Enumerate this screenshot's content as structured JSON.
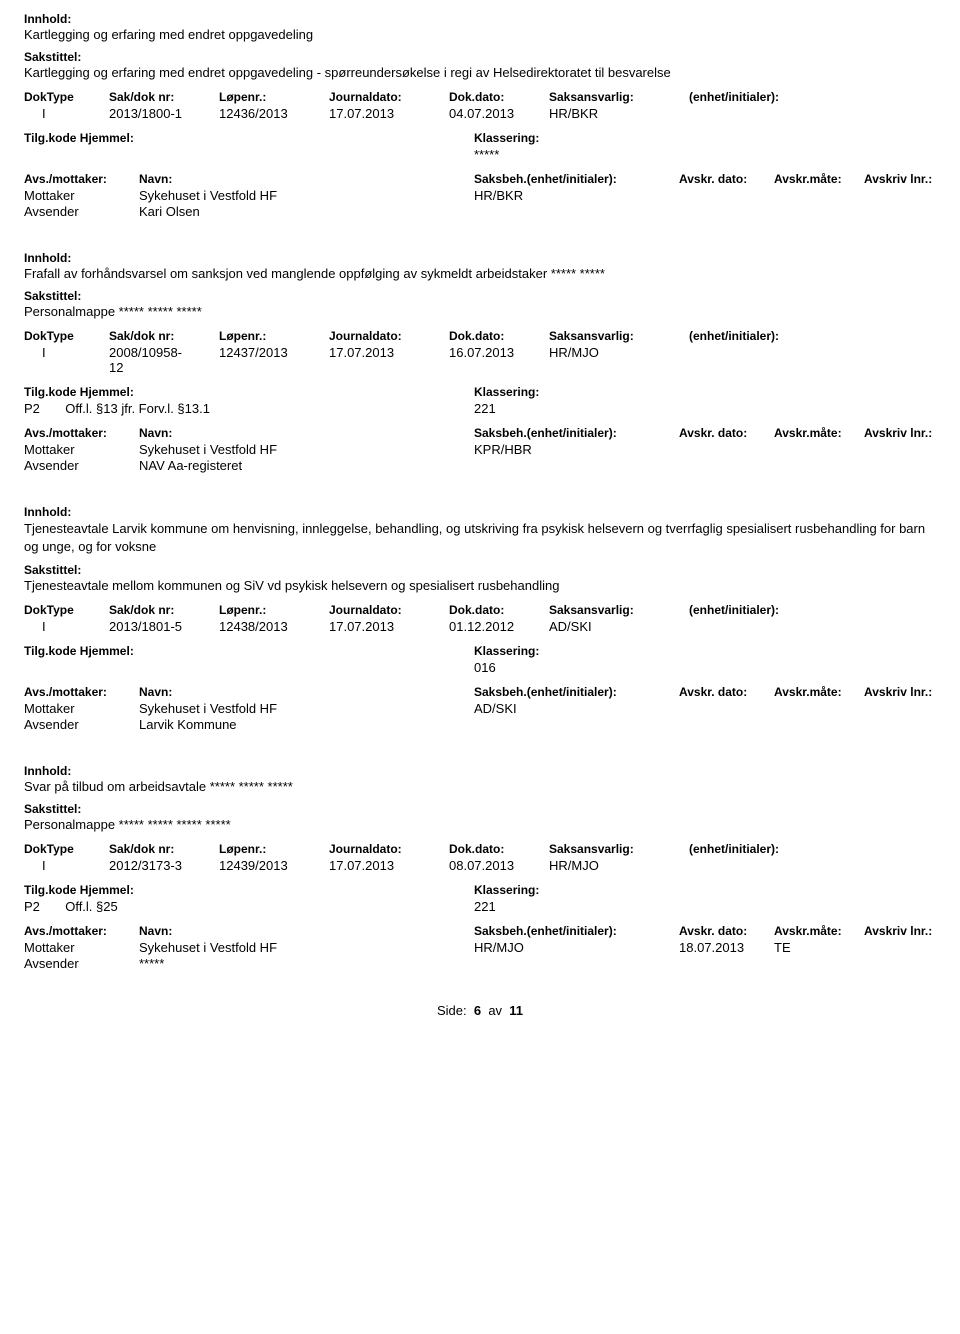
{
  "labels": {
    "innhold": "Innhold:",
    "sakstittel": "Sakstittel:",
    "doktype": "DokType",
    "sakdoknr": "Sak/dok nr:",
    "lopenr": "Løpenr.:",
    "journaldato": "Journaldato:",
    "dokdato": "Dok.dato:",
    "saksansvarlig": "Saksansvarlig:",
    "enhet": "(enhet/initialer):",
    "tilgkode": "Tilg.kode",
    "hjemmel": "Hjemmel:",
    "klassering": "Klassering:",
    "avsmottaker": "Avs./mottaker:",
    "navn": "Navn:",
    "saksbeh": "Saksbeh.",
    "saksbeh_enhet": "(enhet/initialer):",
    "avskrdato": "Avskr. dato:",
    "avskrmate": "Avskr.måte:",
    "avskrivlnr": "Avskriv lnr.:",
    "mottaker": "Mottaker",
    "avsender": "Avsender"
  },
  "records": [
    {
      "innhold": "Kartlegging og erfaring med endret oppgavedeling",
      "sakstittel": "Kartlegging og erfaring med endret oppgavedeling - spørreundersøkelse i regi av Helsedirektoratet til besvarelse",
      "doktype": "I",
      "sakdoknr": "2013/1800-1",
      "sakdoknr2": "",
      "lopenr": "12436/2013",
      "journaldato": "17.07.2013",
      "dokdato": "04.07.2013",
      "saksansvarlig": "HR/BKR",
      "tilgkode": "",
      "hjemmel": "",
      "klassering": "*****",
      "parties": [
        {
          "role": "Mottaker",
          "navn": "Sykehuset i Vestfold HF",
          "saksbeh": "HR/BKR",
          "avskrdato": "",
          "avskrmate": ""
        },
        {
          "role": "Avsender",
          "navn": "Kari Olsen",
          "saksbeh": "",
          "avskrdato": "",
          "avskrmate": ""
        }
      ]
    },
    {
      "innhold": "Frafall av forhåndsvarsel om sanksjon ved manglende oppfølging av sykmeldt arbeidstaker ***** *****",
      "sakstittel": "Personalmappe ***** ***** *****",
      "doktype": "I",
      "sakdoknr": "2008/10958-",
      "sakdoknr2": "12",
      "lopenr": "12437/2013",
      "journaldato": "17.07.2013",
      "dokdato": "16.07.2013",
      "saksansvarlig": "HR/MJO",
      "tilgkode": "P2",
      "hjemmel": "Off.l. §13  jfr. Forv.l. §13.1",
      "klassering": "221",
      "parties": [
        {
          "role": "Mottaker",
          "navn": "Sykehuset i Vestfold HF",
          "saksbeh": "KPR/HBR",
          "avskrdato": "",
          "avskrmate": ""
        },
        {
          "role": "Avsender",
          "navn": "NAV Aa-registeret",
          "saksbeh": "",
          "avskrdato": "",
          "avskrmate": ""
        }
      ]
    },
    {
      "innhold": "Tjenesteavtale Larvik kommune om henvisning, innleggelse, behandling, og utskriving fra psykisk helsevern og tverrfaglig spesialisert rusbehandling for barn og unge, og for voksne",
      "sakstittel": "Tjenesteavtale mellom kommunen og SiV vd psykisk helsevern og spesialisert rusbehandling",
      "doktype": "I",
      "sakdoknr": "2013/1801-5",
      "sakdoknr2": "",
      "lopenr": "12438/2013",
      "journaldato": "17.07.2013",
      "dokdato": "01.12.2012",
      "saksansvarlig": "AD/SKI",
      "tilgkode": "",
      "hjemmel": "",
      "klassering": "016",
      "parties": [
        {
          "role": "Mottaker",
          "navn": "Sykehuset i Vestfold HF",
          "saksbeh": "AD/SKI",
          "avskrdato": "",
          "avskrmate": ""
        },
        {
          "role": "Avsender",
          "navn": "Larvik Kommune",
          "saksbeh": "",
          "avskrdato": "",
          "avskrmate": ""
        }
      ]
    },
    {
      "innhold": "Svar på tilbud om arbeidsavtale ***** ***** *****",
      "sakstittel": "Personalmappe ***** ***** ***** *****",
      "doktype": "I",
      "sakdoknr": "2012/3173-3",
      "sakdoknr2": "",
      "lopenr": "12439/2013",
      "journaldato": "17.07.2013",
      "dokdato": "08.07.2013",
      "saksansvarlig": "HR/MJO",
      "tilgkode": "P2",
      "hjemmel": "Off.l. §25",
      "klassering": "221",
      "parties": [
        {
          "role": "Mottaker",
          "navn": "Sykehuset i Vestfold HF",
          "saksbeh": "HR/MJO",
          "avskrdato": "18.07.2013",
          "avskrmate": "TE"
        },
        {
          "role": "Avsender",
          "navn": "*****",
          "saksbeh": "",
          "avskrdato": "",
          "avskrmate": ""
        }
      ]
    }
  ],
  "footer": {
    "side": "Side:",
    "page": "6",
    "av": "av",
    "total": "11"
  }
}
